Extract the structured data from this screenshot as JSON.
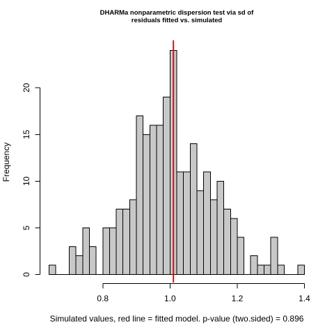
{
  "chart_data": {
    "type": "bar",
    "title": "DHARMa nonparametric dispersion test via sd of\nresiduals fitted vs. simulated",
    "xlabel": "Simulated values, red line = fitted model. p-value (two.sided) = 0.896",
    "ylabel": "Frequency",
    "bin_start": 0.64,
    "bin_width": 0.02,
    "values": [
      1,
      0,
      0,
      3,
      2,
      5,
      3,
      0,
      5,
      5,
      7,
      7,
      8,
      17,
      15,
      16,
      16,
      19,
      24,
      11,
      11,
      14,
      9,
      11,
      8,
      10,
      7,
      6,
      4,
      0,
      2,
      1,
      1,
      4,
      1,
      0,
      0,
      1
    ],
    "xlim": [
      0.64,
      1.4
    ],
    "ylim": [
      0,
      24
    ],
    "xticks": [
      0.8,
      1.0,
      1.2,
      1.4
    ],
    "xtick_labels": [
      "0.8",
      "1.0",
      "1.2",
      "1.4"
    ],
    "yticks": [
      0,
      5,
      10,
      15,
      20
    ],
    "ytick_labels": [
      "0",
      "5",
      "10",
      "15",
      "20"
    ],
    "reference_line": {
      "x": 1.01,
      "color": "#ff0000"
    },
    "bar_color": "#c8c8c8",
    "grid": false
  }
}
